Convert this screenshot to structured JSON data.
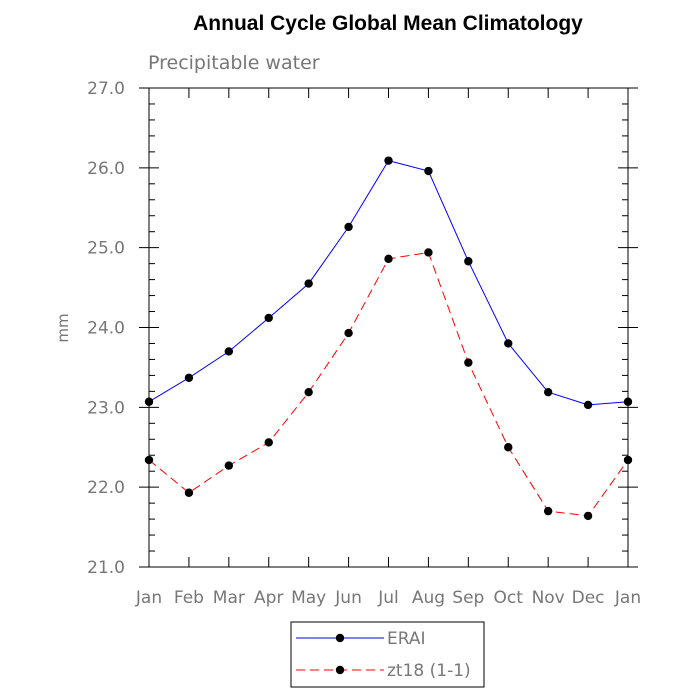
{
  "chart_data": {
    "type": "line",
    "title": "Annual Cycle Global Mean Climatology",
    "subtitle": "Precipitable water",
    "xlabel": "",
    "ylabel": "mm",
    "categories": [
      "Jan",
      "Feb",
      "Mar",
      "Apr",
      "May",
      "Jun",
      "Jul",
      "Aug",
      "Sep",
      "Oct",
      "Nov",
      "Dec",
      "Jan"
    ],
    "yticks": [
      "21.0",
      "22.0",
      "23.0",
      "24.0",
      "25.0",
      "26.0",
      "27.0"
    ],
    "ylim": [
      21.0,
      27.0
    ],
    "grid": false,
    "legend_position": "bottom-center",
    "series": [
      {
        "name": "ERAI",
        "color": "#0000ff",
        "dash": "solid",
        "marker": "filled-circle",
        "values": [
          23.07,
          23.37,
          23.7,
          24.12,
          24.55,
          25.26,
          26.09,
          25.96,
          24.83,
          23.8,
          23.19,
          23.03,
          23.07
        ]
      },
      {
        "name": "zt18 (1-1)",
        "color": "#ff0000",
        "dash": "dashed",
        "marker": "filled-circle",
        "values": [
          22.34,
          21.93,
          22.27,
          22.56,
          23.19,
          23.93,
          24.86,
          24.94,
          23.56,
          22.5,
          21.7,
          21.64,
          22.34
        ]
      }
    ]
  }
}
